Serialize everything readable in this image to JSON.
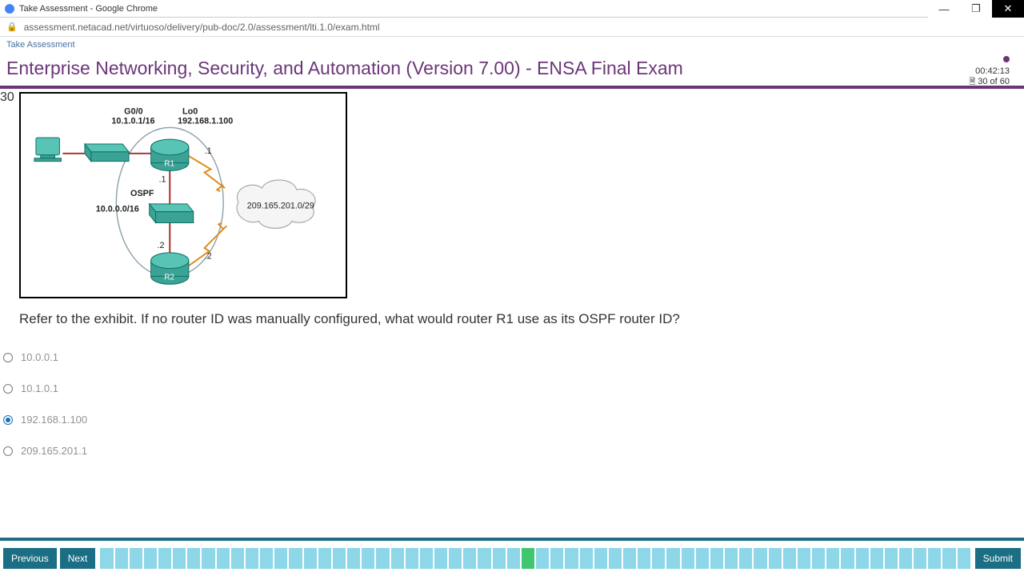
{
  "window": {
    "title": "Take Assessment - Google Chrome",
    "url": "assessment.netacad.net/virtuoso/delivery/pub-doc/2.0/assessment/lti.1.0/exam.html"
  },
  "page": {
    "breadcrumb": "Take Assessment",
    "exam_title": "Enterprise Networking, Security, and Automation (Version 7.00) - ENSA Final Exam",
    "timer": "00:42:13",
    "progress_text": "30 of 60"
  },
  "question": {
    "number": "30",
    "text": "Refer to the exhibit. If no router ID was manually configured, what would router R1 use as its OSPF router ID?",
    "answers": [
      {
        "label": "10.0.0.1",
        "selected": false
      },
      {
        "label": "10.1.0.1",
        "selected": false
      },
      {
        "label": "192.168.1.100",
        "selected": true
      },
      {
        "label": "209.165.201.1",
        "selected": false
      }
    ]
  },
  "exhibit": {
    "labels": {
      "g00": "G0/0",
      "g00_ip": "10.1.0.1/16",
      "lo0": "Lo0",
      "lo0_ip": "192.168.1.100",
      "ospf": "OSPF",
      "nw": "10.0.0.0/16",
      "cloud": "209.165.201.0/29",
      "r1": "R1",
      "r2": "R2",
      "dot1a": ".1",
      "dot1b": ".1",
      "dot2a": ".2",
      "dot2b": ".2"
    }
  },
  "footer": {
    "prev": "Previous",
    "next": "Next",
    "submit": "Submit",
    "total_cells": 60,
    "current_index": 30
  }
}
